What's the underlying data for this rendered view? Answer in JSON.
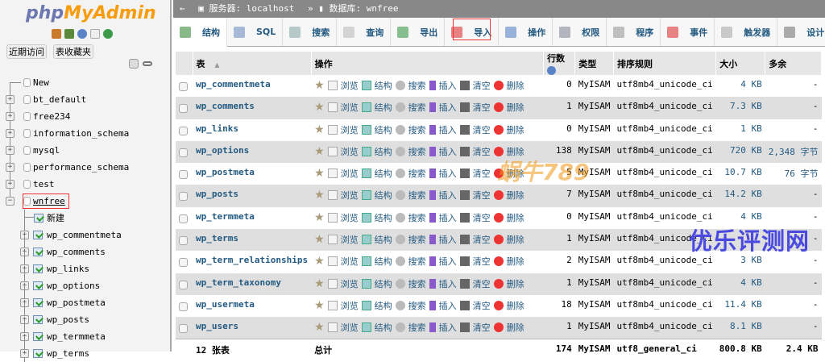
{
  "sidebar": {
    "logo_php": "php",
    "logo_myadmin": "MyAdmin",
    "recent_button": "近期访问",
    "favorites_button": "表收藏夹",
    "databases": [
      {
        "name": "New"
      },
      {
        "name": "bt_default"
      },
      {
        "name": "free234"
      },
      {
        "name": "information_schema"
      },
      {
        "name": "mysql"
      },
      {
        "name": "performance_schema"
      },
      {
        "name": "test"
      },
      {
        "name": "wnfree"
      }
    ],
    "new_table": "新建",
    "tables": [
      "wp_commentmeta",
      "wp_comments",
      "wp_links",
      "wp_options",
      "wp_postmeta",
      "wp_posts",
      "wp_termmeta",
      "wp_terms"
    ]
  },
  "breadcrumb": {
    "server": "服务器: localhost",
    "separator": "»",
    "database": "数据库: wnfree"
  },
  "tabs": [
    {
      "label": "结构",
      "color": "#3a8a3a"
    },
    {
      "label": "SQL",
      "color": "#6f8fc0"
    },
    {
      "label": "搜索",
      "color": "#8aa"
    },
    {
      "label": "查询",
      "color": "#bbb"
    },
    {
      "label": "导出",
      "color": "#3a9a4a"
    },
    {
      "label": "导入",
      "color": "#d33"
    },
    {
      "label": "操作",
      "color": "#5a84c8"
    },
    {
      "label": "权限",
      "color": "#889"
    },
    {
      "label": "程序",
      "color": "#999"
    },
    {
      "label": "事件",
      "color": "#d33"
    },
    {
      "label": "触发器",
      "color": "#aaa"
    },
    {
      "label": "设计",
      "color": "#777"
    }
  ],
  "table": {
    "headers": {
      "table": "表",
      "sort": "▲",
      "actions": "操作",
      "rows": "行数",
      "type": "类型",
      "collation": "排序规则",
      "size": "大小",
      "overhead": "多余"
    },
    "actions": {
      "browse": "浏览",
      "structure": "结构",
      "search": "搜索",
      "insert": "插入",
      "empty": "清空",
      "drop": "删除"
    },
    "rows": [
      {
        "name": "wp_commentmeta",
        "rows": "0",
        "type": "MyISAM",
        "collation": "utf8mb4_unicode_ci",
        "size": "4 KB",
        "overhead": "-"
      },
      {
        "name": "wp_comments",
        "rows": "1",
        "type": "MyISAM",
        "collation": "utf8mb4_unicode_ci",
        "size": "7.3 KB",
        "overhead": "-"
      },
      {
        "name": "wp_links",
        "rows": "0",
        "type": "MyISAM",
        "collation": "utf8mb4_unicode_ci",
        "size": "1 KB",
        "overhead": "-"
      },
      {
        "name": "wp_options",
        "rows": "138",
        "type": "MyISAM",
        "collation": "utf8mb4_unicode_ci",
        "size": "720 KB",
        "overhead": "2,348 字节"
      },
      {
        "name": "wp_postmeta",
        "rows": "5",
        "type": "MyISAM",
        "collation": "utf8mb4_unicode_ci",
        "size": "10.7 KB",
        "overhead": "76 字节"
      },
      {
        "name": "wp_posts",
        "rows": "7",
        "type": "MyISAM",
        "collation": "utf8mb4_unicode_ci",
        "size": "14.2 KB",
        "overhead": "-"
      },
      {
        "name": "wp_termmeta",
        "rows": "0",
        "type": "MyISAM",
        "collation": "utf8mb4_unicode_ci",
        "size": "4 KB",
        "overhead": "-"
      },
      {
        "name": "wp_terms",
        "rows": "1",
        "type": "MyISAM",
        "collation": "utf8mb4_unicode_ci",
        "size": "",
        "overhead": "-"
      },
      {
        "name": "wp_term_relationships",
        "rows": "2",
        "type": "MyISAM",
        "collation": "utf8mb4_unicode_ci",
        "size": "3 KB",
        "overhead": "-"
      },
      {
        "name": "wp_term_taxonomy",
        "rows": "1",
        "type": "MyISAM",
        "collation": "utf8mb4_unicode_ci",
        "size": "4 KB",
        "overhead": "-"
      },
      {
        "name": "wp_usermeta",
        "rows": "18",
        "type": "MyISAM",
        "collation": "utf8mb4_unicode_ci",
        "size": "11.4 KB",
        "overhead": "-"
      },
      {
        "name": "wp_users",
        "rows": "1",
        "type": "MyISAM",
        "collation": "utf8mb4_unicode_ci",
        "size": "8.1 KB",
        "overhead": "-"
      }
    ],
    "footer": {
      "count": "12 张表",
      "label": "总计",
      "rows": "174",
      "type": "MyISAM",
      "collation": "utf8_general_ci",
      "size": "800.8 KB",
      "overhead": "2.4 KB"
    }
  },
  "watermarks": {
    "right": "优乐评测网",
    "center": "蜗牛789"
  }
}
